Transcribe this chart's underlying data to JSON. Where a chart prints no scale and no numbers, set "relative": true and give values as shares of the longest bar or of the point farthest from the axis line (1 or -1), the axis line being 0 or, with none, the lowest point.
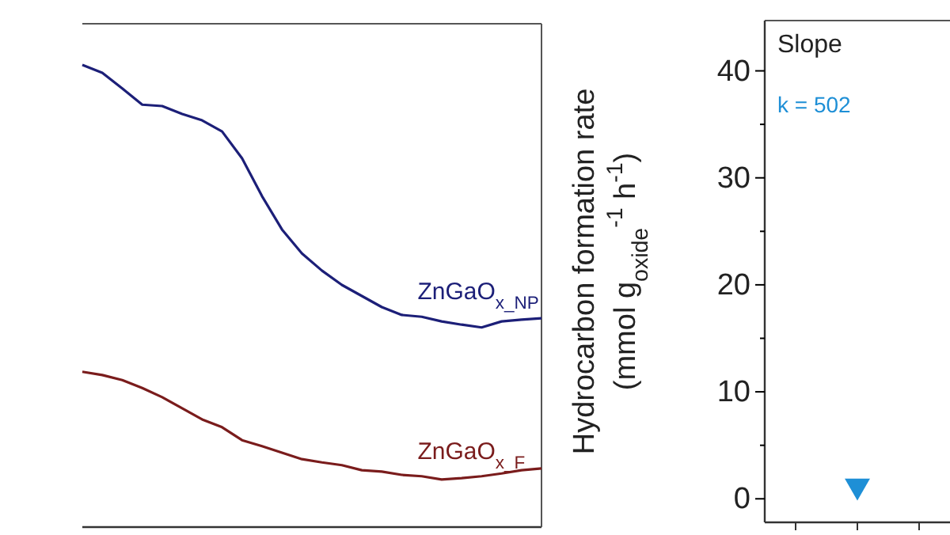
{
  "chart_data": [
    {
      "type": "line",
      "relative": true,
      "categories": [
        null,
        null,
        null,
        null,
        null,
        null,
        null,
        null,
        null,
        null,
        null,
        null,
        null,
        null,
        null,
        null,
        null,
        null,
        null,
        null,
        null,
        null,
        null,
        null
      ],
      "series": [
        {
          "name": "ZnGaO$_{x_NP}$",
          "color": "#1c1f78",
          "values": [
            1.0,
            0.983,
            0.949,
            0.914,
            0.911,
            0.894,
            0.88,
            0.856,
            0.798,
            0.716,
            0.644,
            0.592,
            0.555,
            0.524,
            0.5,
            0.476,
            0.459,
            0.455,
            0.445,
            0.438,
            0.432,
            0.445,
            0.449,
            0.452
          ]
        },
        {
          "name": "ZnGaO$_{x_F}$",
          "color": "#7a1c1c",
          "values": [
            0.336,
            0.329,
            0.318,
            0.301,
            0.281,
            0.257,
            0.233,
            0.216,
            0.188,
            0.175,
            0.161,
            0.147,
            0.14,
            0.134,
            0.123,
            0.12,
            0.113,
            0.11,
            0.103,
            0.106,
            0.11,
            0.116,
            0.123,
            0.127
          ]
        }
      ],
      "marker": "none"
    },
    {
      "type": "scatter",
      "categories": [
        null,
        null,
        null
      ],
      "ylabel": "Hydrocarbon formation rate\n(mmol g$_{oxide}$$^{-1}$ h$^{-1}$)",
      "ylim": [
        -2.2,
        44.7
      ],
      "yticks": [
        0,
        {
          "value": 5,
          "label": null
        },
        10,
        {
          "value": 15,
          "label": null
        },
        20,
        {
          "value": 25,
          "label": null
        },
        30,
        {
          "value": 35,
          "label": null
        },
        40
      ],
      "series": [
        {
          "color": "#1e8fd6",
          "values": [
            null,
            1.2,
            null
          ]
        }
      ],
      "marker": "triangle",
      "annotations": [
        "Slope",
        "k = 502"
      ]
    }
  ]
}
